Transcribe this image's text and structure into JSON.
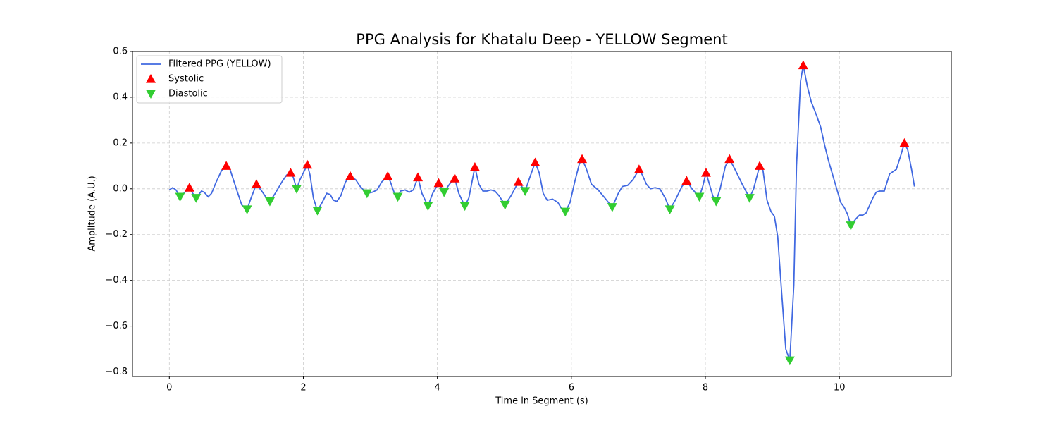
{
  "chart_data": {
    "type": "line",
    "title": "PPG Analysis for Khatalu Deep - YELLOW Segment",
    "x_label": "Time in Segment (s)",
    "y_label": "Amplitude (A.U.)",
    "xlim": [
      -0.55,
      11.67
    ],
    "ylim": [
      -0.82,
      0.6
    ],
    "xticks": [
      0,
      2,
      4,
      6,
      8,
      10
    ],
    "yticks": [
      {
        "value": -0.8,
        "label": "−0.8"
      },
      {
        "value": -0.6,
        "label": "−0.6"
      },
      {
        "value": -0.4,
        "label": "−0.4"
      },
      {
        "value": -0.2,
        "label": "−0.2"
      },
      {
        "value": 0,
        "label": "0.0"
      },
      0.2,
      0.4,
      0.6
    ],
    "grid": true,
    "legend": "upper left",
    "series": [
      {
        "name": "Filtered PPG (YELLOW)",
        "color": "#4169e1",
        "marker": "line",
        "x": [
          0.0,
          0.05,
          0.1,
          0.16,
          0.25,
          0.3,
          0.35,
          0.4,
          0.48,
          0.52,
          0.58,
          0.63,
          0.7,
          0.78,
          0.85,
          0.9,
          1.0,
          1.08,
          1.16,
          1.22,
          1.3,
          1.38,
          1.45,
          1.5,
          1.58,
          1.68,
          1.75,
          1.81,
          1.85,
          1.9,
          1.95,
          2.06,
          2.1,
          2.15,
          2.21,
          2.28,
          2.35,
          2.4,
          2.45,
          2.5,
          2.56,
          2.63,
          2.7,
          2.78,
          2.85,
          2.95,
          3.03,
          3.1,
          3.17,
          3.26,
          3.3,
          3.36,
          3.41,
          3.45,
          3.52,
          3.58,
          3.64,
          3.71,
          3.77,
          3.86,
          3.93,
          4.02,
          4.1,
          4.18,
          4.26,
          4.32,
          4.41,
          4.47,
          4.56,
          4.62,
          4.68,
          4.74,
          4.8,
          4.86,
          4.92,
          5.01,
          5.1,
          5.21,
          5.31,
          5.38,
          5.46,
          5.52,
          5.58,
          5.64,
          5.72,
          5.8,
          5.86,
          5.91,
          5.98,
          6.05,
          6.12,
          6.16,
          6.22,
          6.3,
          6.4,
          6.5,
          6.61,
          6.7,
          6.76,
          6.84,
          6.92,
          7.01,
          7.06,
          7.12,
          7.18,
          7.25,
          7.32,
          7.4,
          7.47,
          7.55,
          7.65,
          7.72,
          7.8,
          7.91,
          7.96,
          8.01,
          8.06,
          8.11,
          8.16,
          8.22,
          8.3,
          8.36,
          8.45,
          8.55,
          8.66,
          8.72,
          8.81,
          8.86,
          8.92,
          8.98,
          9.03,
          9.08,
          9.14,
          9.2,
          9.26,
          9.32,
          9.36,
          9.42,
          9.46,
          9.52,
          9.58,
          9.66,
          9.72,
          9.78,
          9.84,
          9.9,
          9.96,
          10.02,
          10.07,
          10.12,
          10.17,
          10.25,
          10.3,
          10.35,
          10.4,
          10.5,
          10.55,
          10.6,
          10.67,
          10.75,
          10.85,
          10.92,
          10.97,
          11.02,
          11.08,
          11.12
        ],
        "values": [
          -0.005,
          0.005,
          -0.005,
          -0.035,
          -0.01,
          0.005,
          -0.02,
          -0.04,
          -0.01,
          -0.015,
          -0.035,
          -0.02,
          0.03,
          0.08,
          0.1,
          0.09,
          0.0,
          -0.07,
          -0.09,
          -0.04,
          0.02,
          -0.01,
          -0.04,
          -0.055,
          -0.02,
          0.03,
          0.06,
          0.07,
          0.05,
          0.0,
          0.04,
          0.105,
          0.06,
          -0.04,
          -0.095,
          -0.06,
          -0.02,
          -0.025,
          -0.05,
          -0.055,
          -0.03,
          0.03,
          0.055,
          0.04,
          0.01,
          -0.02,
          -0.015,
          -0.005,
          0.03,
          0.055,
          0.03,
          -0.02,
          -0.035,
          -0.01,
          -0.005,
          -0.015,
          -0.005,
          0.05,
          -0.02,
          -0.075,
          -0.02,
          0.025,
          -0.015,
          0.02,
          0.045,
          -0.02,
          -0.075,
          -0.04,
          0.095,
          0.02,
          -0.01,
          -0.01,
          -0.005,
          -0.01,
          -0.03,
          -0.07,
          -0.03,
          0.03,
          -0.01,
          0.05,
          0.115,
          0.07,
          -0.02,
          -0.05,
          -0.045,
          -0.06,
          -0.09,
          -0.1,
          -0.06,
          0.03,
          0.11,
          0.13,
          0.09,
          0.02,
          -0.005,
          -0.04,
          -0.08,
          -0.02,
          0.01,
          0.015,
          0.04,
          0.085,
          0.06,
          0.02,
          0.0,
          0.005,
          0.0,
          -0.04,
          -0.09,
          -0.05,
          0.01,
          0.035,
          0.0,
          -0.035,
          0.01,
          0.07,
          0.02,
          -0.03,
          -0.055,
          0.0,
          0.1,
          0.13,
          0.08,
          0.02,
          -0.04,
          0.0,
          0.1,
          0.08,
          -0.05,
          -0.1,
          -0.12,
          -0.21,
          -0.46,
          -0.7,
          -0.75,
          -0.42,
          0.1,
          0.47,
          0.54,
          0.45,
          0.38,
          0.32,
          0.27,
          0.19,
          0.12,
          0.06,
          0.0,
          -0.06,
          -0.08,
          -0.11,
          -0.16,
          -0.13,
          -0.115,
          -0.115,
          -0.105,
          -0.04,
          -0.015,
          -0.01,
          -0.01,
          0.065,
          0.085,
          0.15,
          0.2,
          0.17,
          0.08,
          0.01
        ]
      },
      {
        "name": "Systolic",
        "color": "#ff0000",
        "marker": "triangle-up",
        "x": [
          0.3,
          0.85,
          1.3,
          1.81,
          2.06,
          2.7,
          3.26,
          3.71,
          4.02,
          4.26,
          4.56,
          5.21,
          5.46,
          6.16,
          7.01,
          7.72,
          8.01,
          8.36,
          8.81,
          9.46,
          10.97
        ],
        "values": [
          0.005,
          0.1,
          0.02,
          0.07,
          0.105,
          0.055,
          0.055,
          0.05,
          0.025,
          0.045,
          0.095,
          0.03,
          0.115,
          0.13,
          0.085,
          0.035,
          0.07,
          0.13,
          0.1,
          0.54,
          0.2
        ]
      },
      {
        "name": "Diastolic",
        "color": "#32cd32",
        "marker": "triangle-down",
        "x": [
          0.16,
          0.4,
          1.16,
          1.5,
          1.9,
          2.21,
          2.95,
          3.41,
          3.86,
          4.1,
          4.41,
          5.01,
          5.31,
          5.91,
          6.61,
          7.47,
          7.91,
          8.16,
          8.66,
          9.26,
          10.17
        ],
        "values": [
          -0.035,
          -0.04,
          -0.09,
          -0.055,
          0.0,
          -0.095,
          -0.02,
          -0.035,
          -0.075,
          -0.015,
          -0.075,
          -0.07,
          -0.01,
          -0.1,
          -0.08,
          -0.09,
          -0.035,
          -0.055,
          -0.04,
          -0.75,
          -0.16
        ]
      }
    ]
  }
}
